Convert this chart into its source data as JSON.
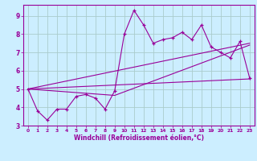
{
  "bg_color": "#cceeff",
  "grid_color": "#aacccc",
  "line_color": "#990099",
  "xlim": [
    -0.5,
    23.5
  ],
  "ylim": [
    3.0,
    9.6
  ],
  "yticks": [
    3,
    4,
    5,
    6,
    7,
    8,
    9
  ],
  "xticks": [
    0,
    1,
    2,
    3,
    4,
    5,
    6,
    7,
    8,
    9,
    10,
    11,
    12,
    13,
    14,
    15,
    16,
    17,
    18,
    19,
    20,
    21,
    22,
    23
  ],
  "xlabel": "Windchill (Refroidissement éolien,°C)",
  "series1_x": [
    0,
    1,
    2,
    3,
    4,
    5,
    6,
    7,
    8,
    9,
    10,
    11,
    12,
    13,
    14,
    15,
    16,
    17,
    18,
    19,
    20,
    21,
    22,
    23
  ],
  "series1_y": [
    5.0,
    3.8,
    3.3,
    3.9,
    3.9,
    4.6,
    4.7,
    4.5,
    3.9,
    4.9,
    8.0,
    9.3,
    8.5,
    7.5,
    7.7,
    7.8,
    8.1,
    7.7,
    8.5,
    7.3,
    7.0,
    6.7,
    7.6,
    5.6
  ],
  "series2_x": [
    0,
    23
  ],
  "series2_y": [
    5.0,
    5.55
  ],
  "series3_x": [
    0,
    9,
    23
  ],
  "series3_y": [
    5.0,
    4.65,
    7.4
  ],
  "series4_x": [
    0,
    23
  ],
  "series4_y": [
    5.0,
    7.5
  ]
}
